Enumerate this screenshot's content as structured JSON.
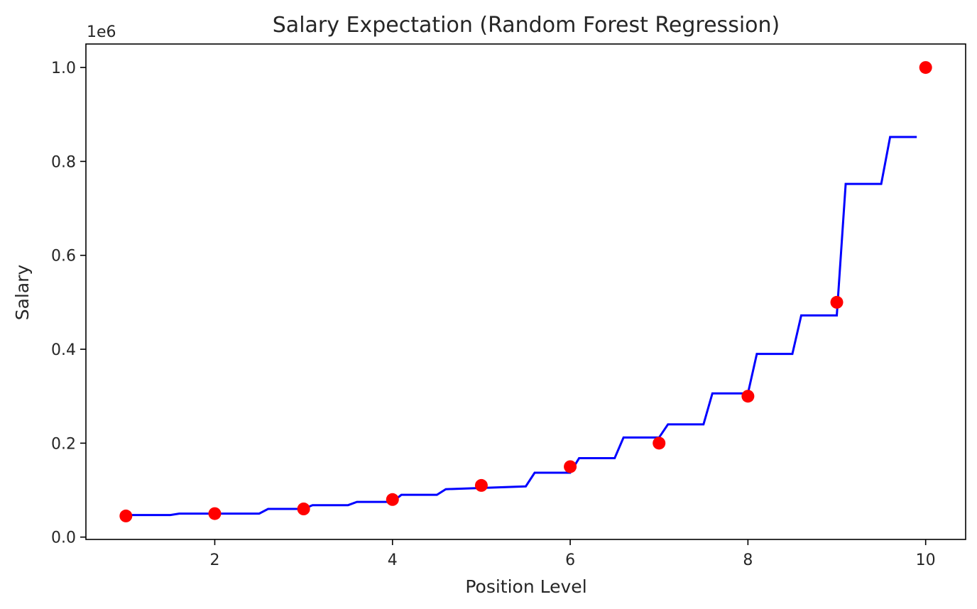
{
  "chart_data": {
    "type": "scatter",
    "title": "Salary Expectation (Random Forest Regression)",
    "xlabel": "Position Level",
    "ylabel": "Salary",
    "y_offset_text": "1e6",
    "xlim": [
      0.55,
      10.45
    ],
    "ylim": [
      -0.005,
      1.05
    ],
    "x_ticks": [
      2,
      4,
      6,
      8,
      10
    ],
    "x_tick_labels": [
      "2",
      "4",
      "6",
      "8",
      "10"
    ],
    "y_ticks": [
      0.0,
      0.2,
      0.4,
      0.6,
      0.8,
      1.0
    ],
    "y_tick_labels": [
      "0.0",
      "0.2",
      "0.4",
      "0.6",
      "0.8",
      "1.0"
    ],
    "grid": false,
    "series": [
      {
        "kind": "scatter",
        "color": "#ff0000",
        "x": [
          1,
          2,
          3,
          4,
          5,
          6,
          7,
          8,
          9,
          10
        ],
        "y": [
          0.045,
          0.05,
          0.06,
          0.08,
          0.11,
          0.15,
          0.2,
          0.3,
          0.5,
          1.0
        ]
      },
      {
        "kind": "line",
        "color": "#0000ff",
        "x": [
          1.0,
          1.5,
          1.6,
          2.5,
          2.6,
          3.0,
          3.1,
          3.5,
          3.6,
          4.0,
          4.1,
          4.5,
          4.6,
          5.5,
          5.6,
          6.0,
          6.1,
          6.5,
          6.6,
          7.0,
          7.1,
          7.5,
          7.6,
          8.0,
          8.1,
          8.5,
          8.6,
          9.0,
          9.1,
          9.5,
          9.6,
          9.9
        ],
        "y": [
          0.047,
          0.047,
          0.05,
          0.05,
          0.06,
          0.06,
          0.068,
          0.068,
          0.075,
          0.075,
          0.09,
          0.09,
          0.102,
          0.108,
          0.137,
          0.137,
          0.168,
          0.168,
          0.212,
          0.212,
          0.24,
          0.24,
          0.306,
          0.306,
          0.39,
          0.39,
          0.472,
          0.472,
          0.752,
          0.752,
          0.852,
          0.852
        ]
      }
    ]
  }
}
